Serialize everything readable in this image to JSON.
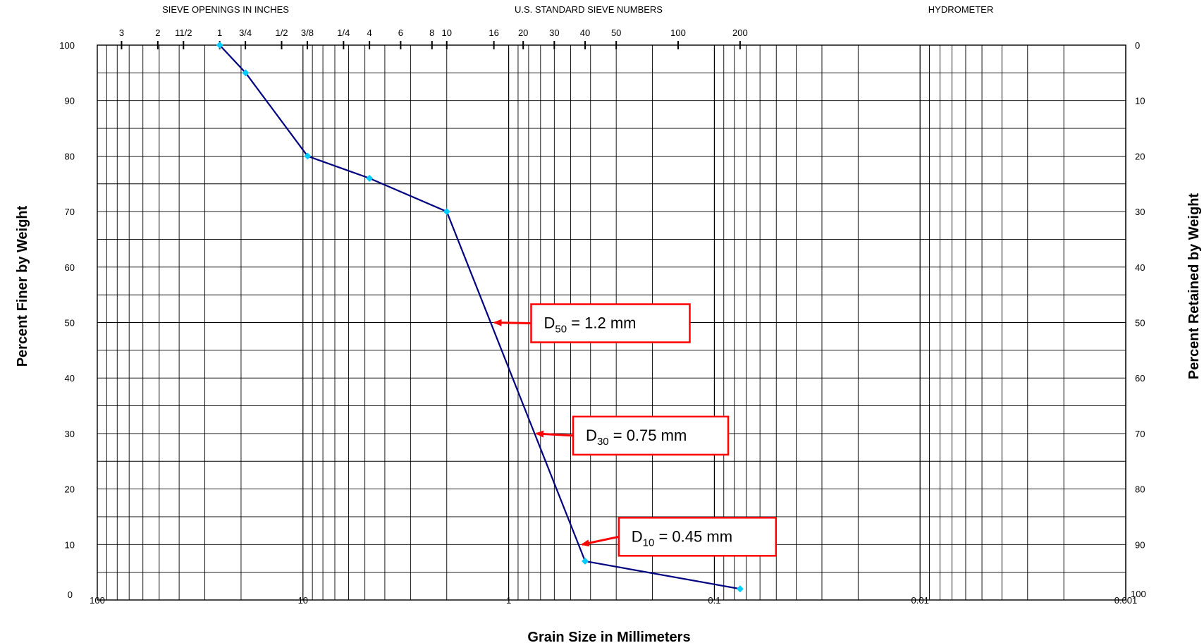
{
  "chart_data": {
    "type": "line",
    "xscale": "log",
    "x_reversed": true,
    "xlim": [
      100,
      0.001
    ],
    "ylim": [
      0,
      100
    ],
    "grid": true,
    "xlabel": "Grain Size in Millimeters",
    "ylabel": "Percent Finer by Weight",
    "y2label": "Percent Retained by Weight",
    "top_group_labels": [
      "SIEVE OPENINGS IN INCHES",
      "U.S. STANDARD SIEVE NUMBERS",
      "HYDROMETER"
    ],
    "top_ticks": [
      {
        "label": "3",
        "mm": 76.2
      },
      {
        "label": "2",
        "mm": 50.8
      },
      {
        "label": "11/2",
        "mm": 38.1
      },
      {
        "label": "1",
        "mm": 25.4
      },
      {
        "label": "3/4",
        "mm": 19.05
      },
      {
        "label": "1/2",
        "mm": 12.7
      },
      {
        "label": "3/8",
        "mm": 9.525
      },
      {
        "label": "1/4",
        "mm": 6.35
      },
      {
        "label": "4",
        "mm": 4.75
      },
      {
        "label": "6",
        "mm": 3.35
      },
      {
        "label": "8",
        "mm": 2.36
      },
      {
        "label": "10",
        "mm": 2.0
      },
      {
        "label": "16",
        "mm": 1.18
      },
      {
        "label": "20",
        "mm": 0.85
      },
      {
        "label": "30",
        "mm": 0.6
      },
      {
        "label": "40",
        "mm": 0.425
      },
      {
        "label": "50",
        "mm": 0.3
      },
      {
        "label": "100",
        "mm": 0.15
      },
      {
        "label": "200",
        "mm": 0.075
      }
    ],
    "x_tick_labels": [
      {
        "label": "100",
        "mm": 100
      },
      {
        "label": "10",
        "mm": 10
      },
      {
        "label": "1",
        "mm": 1
      },
      {
        "label": "0.1",
        "mm": 0.1
      },
      {
        "label": "0.01",
        "mm": 0.01
      },
      {
        "label": "0.001",
        "mm": 0.001
      }
    ],
    "y_ticks": [
      "0",
      "10",
      "20",
      "30",
      "40",
      "50",
      "60",
      "70",
      "80",
      "90",
      "100"
    ],
    "y2_ticks": [
      "100",
      "90",
      "80",
      "70",
      "60",
      "50",
      "40",
      "30",
      "20",
      "10",
      "0"
    ],
    "series": [
      {
        "color": "#000080",
        "marker_color": "#00ccff",
        "points": [
          {
            "x": 25.4,
            "y": 100
          },
          {
            "x": 19.0,
            "y": 95
          },
          {
            "x": 9.5,
            "y": 80
          },
          {
            "x": 4.75,
            "y": 76
          },
          {
            "x": 2.0,
            "y": 70
          },
          {
            "x": 0.425,
            "y": 7
          },
          {
            "x": 0.075,
            "y": 2
          }
        ]
      }
    ],
    "annotations": [
      {
        "label": "D",
        "sub": "50",
        "suffix": " = 1.2 mm",
        "x": 1.2,
        "y": 50
      },
      {
        "label": "D",
        "sub": "30",
        "suffix": " = 0.75 mm",
        "x": 0.75,
        "y": 30
      },
      {
        "label": "D",
        "sub": "10",
        "suffix": " = 0.45 mm",
        "x": 0.45,
        "y": 10
      }
    ],
    "annotation_color": "#ff0000"
  }
}
